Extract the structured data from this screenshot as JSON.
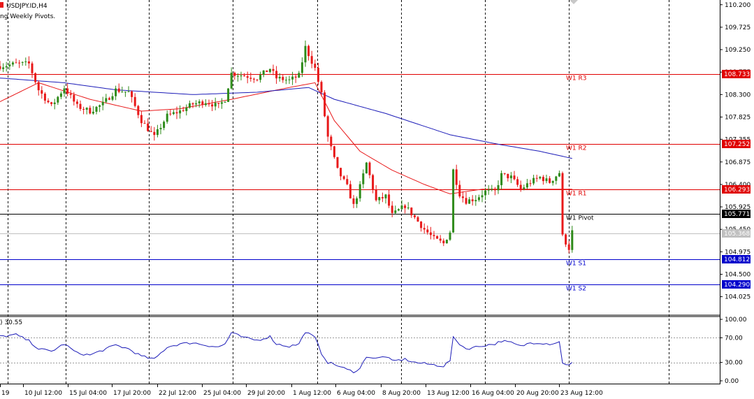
{
  "header": {
    "symbol_line": "USDJPY.ID,H4",
    "indicator_line": "ng Weekly Pivots."
  },
  "rsi_label": ") 30.55",
  "colors": {
    "bull": "#2e8b1a",
    "bear": "#e8191a",
    "ma_red": "#e8191a",
    "ma_blue": "#1c1cb8",
    "resistance": "#e00000",
    "pivot": "#000000",
    "support": "#0000cc",
    "rsi": "#1c1cb8",
    "current_price": "#c0c0c0"
  },
  "chart_data": {
    "type": "candlestick",
    "price_axis": {
      "ticks": [
        "110.200",
        "109.725",
        "109.250",
        "108.775",
        "108.300",
        "107.825",
        "107.355",
        "106.875",
        "106.400",
        "105.925",
        "105.450",
        "104.975",
        "104.500",
        "104.025"
      ],
      "range": [
        103.65,
        110.3
      ]
    },
    "time_axis": {
      "labels": [
        "19",
        "10 Jul 12:00",
        "15 Jul 04:00",
        "17 Jul 20:00",
        "22 Jul 12:00",
        "25 Jul 04:00",
        "29 Jul 20:00",
        "1 Aug 12:00",
        "6 Aug 04:00",
        "8 Aug 20:00",
        "13 Aug 12:00",
        "16 Aug 04:00",
        "20 Aug 20:00",
        "23 Aug 12:00"
      ]
    },
    "pivot_levels": [
      {
        "name": "W1 R3",
        "value": "108.733",
        "kind": "resistance"
      },
      {
        "name": "W1 R2",
        "value": "107.252",
        "kind": "resistance"
      },
      {
        "name": "W1 R1",
        "value": "106.293",
        "kind": "resistance"
      },
      {
        "name": "W1 Pivot",
        "value": "105.771",
        "kind": "pivot"
      },
      {
        "name": "W1 S1",
        "value": "104.812",
        "kind": "support"
      },
      {
        "name": "W1 S2",
        "value": "104.290",
        "kind": "support"
      }
    ],
    "current_price": "105.368",
    "price_anchors": [
      [
        0,
        108.9
      ],
      [
        5,
        108.95
      ],
      [
        9,
        108.95
      ],
      [
        12,
        108.4
      ],
      [
        16,
        108.05
      ],
      [
        20,
        108.45
      ],
      [
        24,
        108.05
      ],
      [
        28,
        107.95
      ],
      [
        32,
        108.1
      ],
      [
        36,
        108.4
      ],
      [
        40,
        108.35
      ],
      [
        44,
        107.75
      ],
      [
        48,
        107.4
      ],
      [
        52,
        107.85
      ],
      [
        56,
        107.95
      ],
      [
        60,
        108.1
      ],
      [
        64,
        108.15
      ],
      [
        68,
        108.05
      ],
      [
        70,
        108.2
      ],
      [
        72,
        108.75
      ],
      [
        76,
        108.7
      ],
      [
        80,
        108.65
      ],
      [
        84,
        108.85
      ],
      [
        86,
        108.65
      ],
      [
        90,
        108.6
      ],
      [
        93,
        108.7
      ],
      [
        95,
        109.3
      ],
      [
        98,
        108.85
      ],
      [
        100,
        108.3
      ],
      [
        102,
        107.4
      ],
      [
        105,
        106.7
      ],
      [
        108,
        106.35
      ],
      [
        110,
        105.95
      ],
      [
        112,
        106.35
      ],
      [
        114,
        106.85
      ],
      [
        117,
        106.05
      ],
      [
        120,
        106.15
      ],
      [
        122,
        105.75
      ],
      [
        126,
        105.95
      ],
      [
        129,
        105.7
      ],
      [
        132,
        105.45
      ],
      [
        135,
        105.25
      ],
      [
        138,
        105.15
      ],
      [
        140,
        105.4
      ],
      [
        141,
        106.7
      ],
      [
        143,
        106.2
      ],
      [
        145,
        106.05
      ],
      [
        148,
        106.1
      ],
      [
        151,
        106.25
      ],
      [
        154,
        106.25
      ],
      [
        156,
        106.6
      ],
      [
        159,
        106.55
      ],
      [
        162,
        106.3
      ],
      [
        165,
        106.45
      ],
      [
        168,
        106.55
      ],
      [
        171,
        106.45
      ],
      [
        174,
        106.65
      ],
      [
        175,
        105.3
      ],
      [
        177,
        105.05
      ],
      [
        178,
        105.4
      ]
    ],
    "ma_fast_anchors": [
      [
        0,
        108.15
      ],
      [
        12,
        108.55
      ],
      [
        28,
        108.2
      ],
      [
        44,
        107.95
      ],
      [
        56,
        108.0
      ],
      [
        72,
        108.2
      ],
      [
        90,
        108.45
      ],
      [
        98,
        108.55
      ],
      [
        104,
        107.75
      ],
      [
        112,
        107.1
      ],
      [
        122,
        106.7
      ],
      [
        132,
        106.4
      ],
      [
        140,
        106.2
      ],
      [
        150,
        106.3
      ],
      [
        162,
        106.3
      ],
      [
        174,
        106.3
      ]
    ],
    "ma_slow_anchors": [
      [
        0,
        108.65
      ],
      [
        20,
        108.55
      ],
      [
        36,
        108.4
      ],
      [
        60,
        108.3
      ],
      [
        80,
        108.35
      ],
      [
        96,
        108.45
      ],
      [
        104,
        108.2
      ],
      [
        120,
        107.9
      ],
      [
        140,
        107.45
      ],
      [
        155,
        107.25
      ],
      [
        168,
        107.1
      ],
      [
        178,
        106.95
      ]
    ],
    "rsi": {
      "axis_ticks": [
        "100.00",
        "70.00",
        "30.00",
        "0.00"
      ],
      "levels": [
        70,
        30
      ],
      "last": 30.55,
      "anchors": [
        [
          0,
          72
        ],
        [
          5,
          75
        ],
        [
          9,
          65
        ],
        [
          12,
          52
        ],
        [
          16,
          48
        ],
        [
          20,
          60
        ],
        [
          24,
          45
        ],
        [
          28,
          42
        ],
        [
          32,
          50
        ],
        [
          36,
          58
        ],
        [
          40,
          52
        ],
        [
          44,
          40
        ],
        [
          48,
          35
        ],
        [
          52,
          55
        ],
        [
          56,
          60
        ],
        [
          60,
          62
        ],
        [
          64,
          58
        ],
        [
          68,
          55
        ],
        [
          70,
          60
        ],
        [
          72,
          78
        ],
        [
          76,
          70
        ],
        [
          80,
          66
        ],
        [
          84,
          72
        ],
        [
          86,
          60
        ],
        [
          90,
          56
        ],
        [
          93,
          60
        ],
        [
          95,
          80
        ],
        [
          98,
          70
        ],
        [
          100,
          45
        ],
        [
          102,
          30
        ],
        [
          105,
          25
        ],
        [
          108,
          18
        ],
        [
          110,
          15
        ],
        [
          112,
          20
        ],
        [
          114,
          40
        ],
        [
          117,
          36
        ],
        [
          120,
          40
        ],
        [
          122,
          32
        ],
        [
          126,
          35
        ],
        [
          129,
          30
        ],
        [
          132,
          28
        ],
        [
          135,
          26
        ],
        [
          138,
          24
        ],
        [
          140,
          33
        ],
        [
          141,
          70
        ],
        [
          143,
          60
        ],
        [
          145,
          52
        ],
        [
          148,
          55
        ],
        [
          151,
          58
        ],
        [
          154,
          60
        ],
        [
          156,
          65
        ],
        [
          159,
          62
        ],
        [
          162,
          56
        ],
        [
          165,
          62
        ],
        [
          168,
          62
        ],
        [
          171,
          60
        ],
        [
          174,
          63
        ],
        [
          175,
          30
        ],
        [
          177,
          25
        ],
        [
          178,
          29
        ]
      ]
    }
  }
}
